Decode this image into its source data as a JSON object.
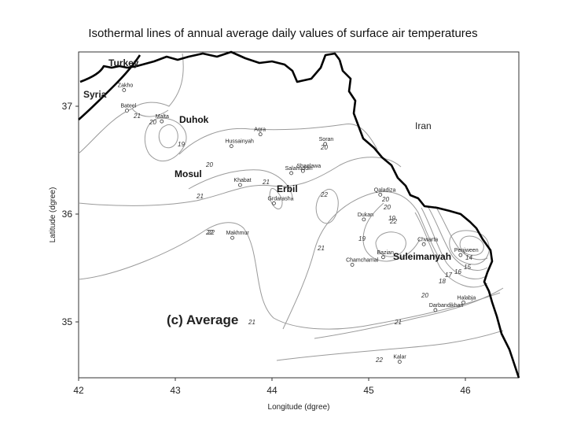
{
  "title": "Isothermal lines of annual average daily values of surface air temperatures",
  "panel_label": "(c) Average",
  "axes": {
    "xlabel": "Longitude (dgree)",
    "ylabel": "Latitude (dgree)",
    "x_ticks": [
      "42",
      "43",
      "44",
      "45",
      "46"
    ],
    "y_ticks": [
      "37",
      "36",
      "35"
    ]
  },
  "countries": [
    "Turkey",
    "Syria",
    "Iran"
  ],
  "major_cities": [
    "Duhok",
    "Mosul",
    "Erbil",
    "Suleimanyah"
  ],
  "towns": [
    {
      "name": "Zakho",
      "lon": 42.47,
      "lat": 37.15
    },
    {
      "name": "Bateel",
      "lon": 42.5,
      "lat": 36.96
    },
    {
      "name": "Malta",
      "lon": 42.86,
      "lat": 36.86
    },
    {
      "name": "Hussainyah",
      "lon": 43.58,
      "lat": 36.63
    },
    {
      "name": "Aqra",
      "lon": 43.88,
      "lat": 36.74
    },
    {
      "name": "Soran",
      "lon": 44.55,
      "lat": 36.65
    },
    {
      "name": "Shaqlawa",
      "lon": 44.32,
      "lat": 36.4
    },
    {
      "name": "Salahuddin",
      "lon": 44.2,
      "lat": 36.38
    },
    {
      "name": "Khabat",
      "lon": 43.67,
      "lat": 36.27
    },
    {
      "name": "Grdarasha",
      "lon": 44.02,
      "lat": 36.1
    },
    {
      "name": "Qaladiza",
      "lon": 45.12,
      "lat": 36.18
    },
    {
      "name": "Dukan",
      "lon": 44.95,
      "lat": 35.95
    },
    {
      "name": "Chwarta",
      "lon": 45.57,
      "lat": 35.72
    },
    {
      "name": "Penjween",
      "lon": 45.95,
      "lat": 35.62
    },
    {
      "name": "Bazian",
      "lon": 45.15,
      "lat": 35.6
    },
    {
      "name": "Chamchamal",
      "lon": 44.83,
      "lat": 35.53
    },
    {
      "name": "Halabja",
      "lon": 45.98,
      "lat": 35.18
    },
    {
      "name": "Darbandikhan",
      "lon": 45.69,
      "lat": 35.11
    },
    {
      "name": "Makhmur",
      "lon": 43.59,
      "lat": 35.78
    },
    {
      "name": "Kalar",
      "lon": 45.32,
      "lat": 34.63
    }
  ],
  "isotherm_labels": [
    "21",
    "20",
    "19",
    "20",
    "20",
    "21",
    "21",
    "22",
    "22",
    "20",
    "19",
    "19",
    "20",
    "21",
    "22",
    "21",
    "22",
    "14",
    "15",
    "16",
    "17",
    "18",
    "20",
    "21",
    "22"
  ]
}
